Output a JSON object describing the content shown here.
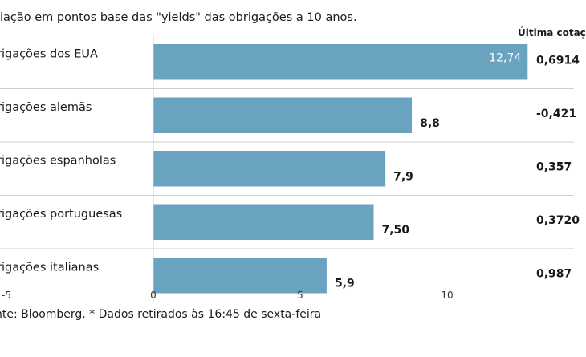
{
  "header": {
    "subtitle": "riação em pontos base das \"yields\" das obrigações a 10 anos.",
    "last_quote_header": "Última cotaç"
  },
  "chart_data": {
    "type": "bar",
    "orientation": "horizontal",
    "categories": [
      "rigações dos EUA",
      "rigações alemãs",
      "rigações espanholas",
      "rigações portuguesas",
      "rigações italianas"
    ],
    "values": [
      12.74,
      8.8,
      7.9,
      7.5,
      5.9
    ],
    "value_labels": [
      "12,74",
      "8,8",
      "7,9",
      "7,50",
      "5,9"
    ],
    "last_quote": [
      "0,6914",
      "-0,421",
      "0,357",
      "0,3720",
      "0,987"
    ],
    "xlim": [
      -5,
      14
    ],
    "x_ticks": [
      -5,
      0,
      5,
      10
    ],
    "x_tick_labels": [
      "-5",
      "0",
      "5",
      "10"
    ],
    "bar_color": "#6aa3bf",
    "grid": false
  },
  "footer": {
    "source": "nte: Bloomberg.  * Dados retirados às 16:45 de sexta-feira"
  }
}
